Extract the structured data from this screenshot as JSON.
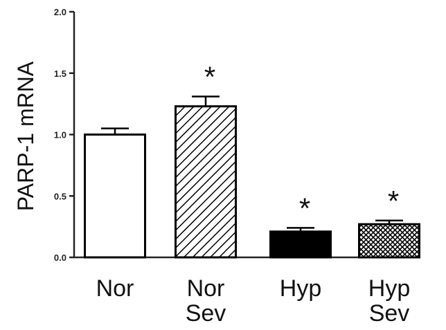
{
  "chart_data": {
    "type": "bar",
    "ylabel": "PARP-1 mRNA",
    "xlabel": "",
    "ylim": [
      0,
      2.0
    ],
    "yticks": [
      "0.0",
      "0.5",
      "1.0",
      "1.5",
      "2.0"
    ],
    "categories": [
      [
        "Nor"
      ],
      [
        "Nor",
        "Sev"
      ],
      [
        "Hyp"
      ],
      [
        "Hyp",
        "Sev"
      ]
    ],
    "values": [
      1.0,
      1.23,
      0.21,
      0.27
    ],
    "errors": [
      0.05,
      0.08,
      0.03,
      0.03
    ],
    "patterns": [
      "open",
      "diagonal-hatch",
      "solid",
      "crosshatch"
    ],
    "annotations": [
      "",
      "*",
      "*",
      "*"
    ],
    "grid": false,
    "legend": "none",
    "colors": {
      "bar_edge": "#000000",
      "bar_fill_open": "#ffffff",
      "bar_fill_solid": "#000000",
      "axis": "#222222"
    }
  }
}
